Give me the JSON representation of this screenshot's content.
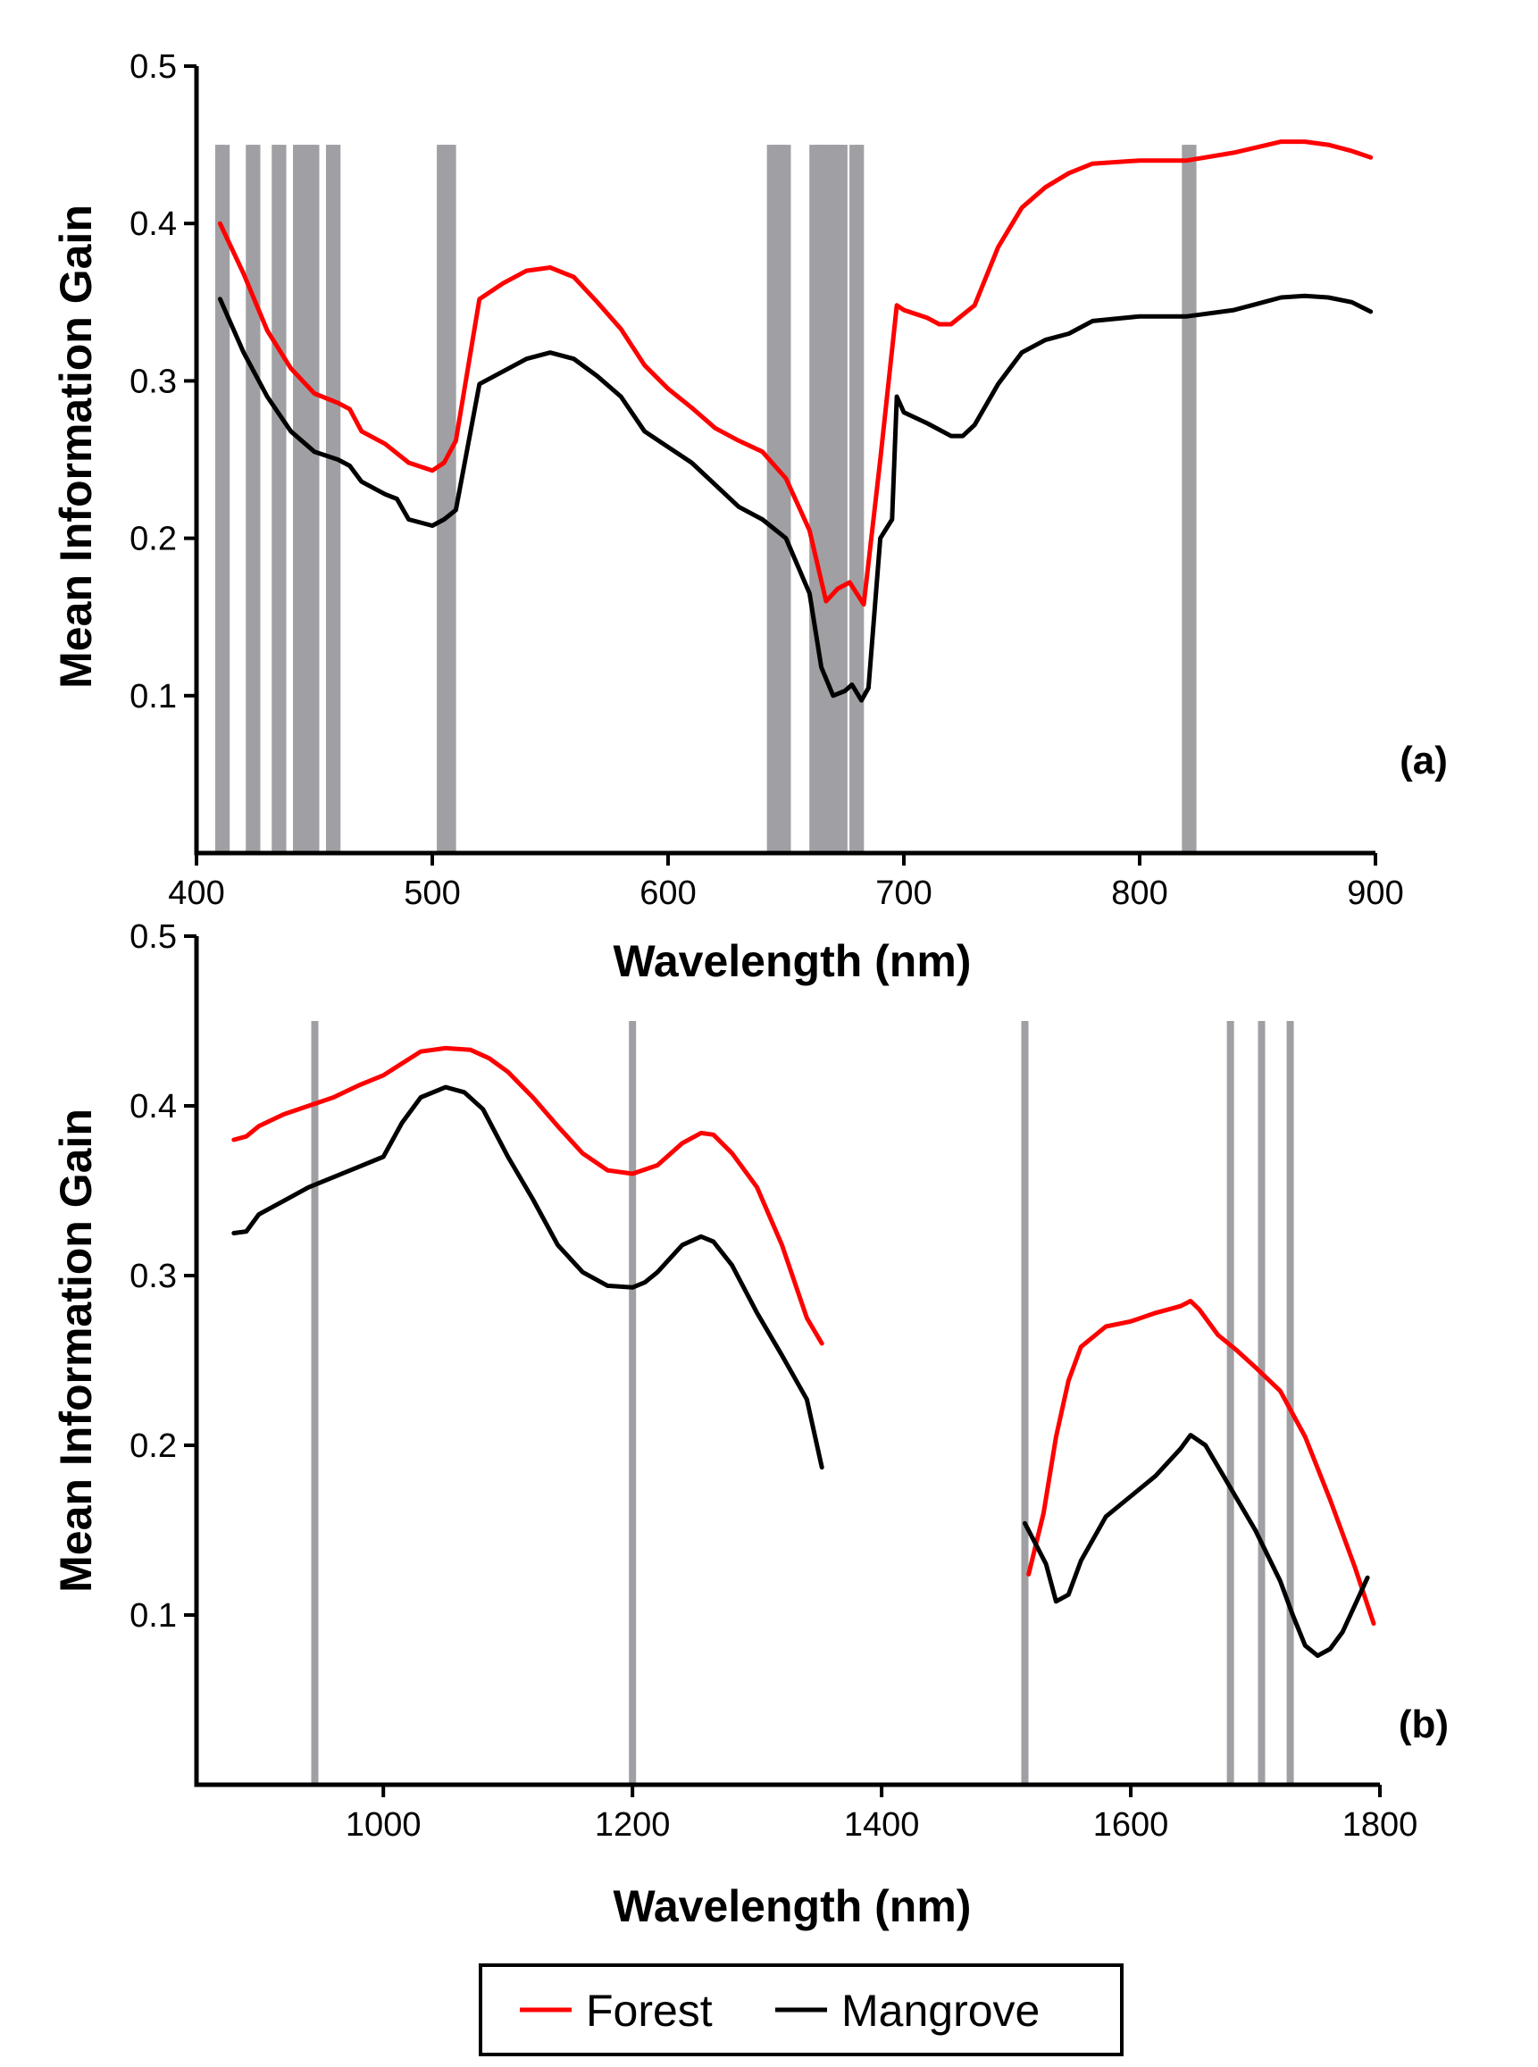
{
  "colors": {
    "forest": "#ff0000",
    "mangrove": "#000000",
    "bands": "#a0a0a4",
    "axis": "#000000"
  },
  "legend": {
    "items": [
      {
        "label": "Forest",
        "color": "#ff0000"
      },
      {
        "label": "Mangrove",
        "color": "#000000"
      }
    ],
    "placement": "bottom-center, boxed"
  },
  "chart_data": [
    {
      "type": "line",
      "panel_label": "(a)",
      "xlabel": "Wavelength (nm)",
      "ylabel": "Mean Information Gain",
      "xlim": [
        400,
        900
      ],
      "ylim": [
        0,
        0.5
      ],
      "xticks": [
        400,
        500,
        600,
        700,
        800,
        900
      ],
      "yticks": [
        0.1,
        0.2,
        0.3,
        0.4,
        0.5
      ],
      "x_tick_labels": [
        "400",
        "500",
        "600",
        "700",
        "800",
        "900"
      ],
      "y_tick_labels": [
        "0.1",
        "0.2",
        "0.3",
        "0.4",
        "0.5"
      ],
      "grid": false,
      "selected_bands": {
        "top": 0.45,
        "wavelengths": [
          410,
          412,
          423,
          425,
          434,
          436,
          443,
          445,
          448,
          450,
          457,
          459,
          504,
          506,
          508,
          644,
          646,
          648,
          650,
          662,
          664,
          666,
          668,
          670,
          672,
          674,
          679,
          681,
          820,
          822
        ]
      },
      "series": [
        {
          "name": "Forest",
          "color": "#ff0000",
          "x": [
            410,
            420,
            430,
            440,
            450,
            460,
            465,
            470,
            480,
            490,
            500,
            505,
            510,
            520,
            530,
            540,
            550,
            560,
            570,
            580,
            590,
            600,
            610,
            620,
            630,
            640,
            650,
            660,
            667,
            672,
            677,
            683,
            690,
            697,
            700,
            710,
            715,
            720,
            730,
            740,
            750,
            760,
            770,
            780,
            800,
            820,
            840,
            860,
            870,
            880,
            890,
            898
          ],
          "values": [
            0.4,
            0.368,
            0.332,
            0.308,
            0.292,
            0.286,
            0.282,
            0.268,
            0.26,
            0.248,
            0.243,
            0.248,
            0.262,
            0.352,
            0.362,
            0.37,
            0.372,
            0.366,
            0.35,
            0.333,
            0.31,
            0.295,
            0.283,
            0.27,
            0.262,
            0.255,
            0.238,
            0.205,
            0.16,
            0.168,
            0.172,
            0.158,
            0.25,
            0.348,
            0.345,
            0.34,
            0.336,
            0.336,
            0.348,
            0.385,
            0.41,
            0.423,
            0.432,
            0.438,
            0.44,
            0.44,
            0.445,
            0.452,
            0.452,
            0.45,
            0.446,
            0.442
          ]
        },
        {
          "name": "Mangrove",
          "color": "#000000",
          "x": [
            410,
            420,
            430,
            440,
            450,
            460,
            465,
            470,
            480,
            485,
            490,
            500,
            505,
            510,
            520,
            530,
            540,
            550,
            560,
            570,
            580,
            590,
            600,
            610,
            620,
            630,
            640,
            650,
            660,
            665,
            670,
            675,
            678,
            682,
            685,
            690,
            695,
            697,
            700,
            710,
            720,
            725,
            730,
            740,
            750,
            760,
            770,
            780,
            800,
            820,
            840,
            860,
            870,
            880,
            890,
            898
          ],
          "values": [
            0.352,
            0.318,
            0.29,
            0.268,
            0.255,
            0.25,
            0.246,
            0.236,
            0.228,
            0.225,
            0.212,
            0.208,
            0.212,
            0.218,
            0.298,
            0.306,
            0.314,
            0.318,
            0.314,
            0.303,
            0.29,
            0.268,
            0.258,
            0.248,
            0.234,
            0.22,
            0.212,
            0.2,
            0.165,
            0.118,
            0.1,
            0.103,
            0.107,
            0.097,
            0.105,
            0.2,
            0.212,
            0.29,
            0.28,
            0.273,
            0.265,
            0.265,
            0.272,
            0.298,
            0.318,
            0.326,
            0.33,
            0.338,
            0.341,
            0.341,
            0.345,
            0.353,
            0.354,
            0.353,
            0.35,
            0.344
          ]
        }
      ]
    },
    {
      "type": "line",
      "panel_label": "(b)",
      "xlabel": "Wavelength (nm)",
      "ylabel": "Mean Information Gain",
      "xlim": [
        850,
        1800
      ],
      "ylim": [
        0,
        0.5
      ],
      "xticks": [
        1000,
        1200,
        1400,
        1600,
        1800
      ],
      "yticks": [
        0.1,
        0.2,
        0.3,
        0.4,
        0.5
      ],
      "x_tick_labels": [
        "1000",
        "1200",
        "1400",
        "1600",
        "1800"
      ],
      "y_tick_labels": [
        "0.1",
        "0.2",
        "0.3",
        "0.4",
        "0.5"
      ],
      "grid": false,
      "selected_bands": {
        "top": 0.45,
        "wavelengths": [
          945,
          1200,
          1515,
          1680,
          1705,
          1728
        ]
      },
      "series": [
        {
          "name": "Forest",
          "color": "#ff0000",
          "segments": [
            {
              "x": [
                880,
                890,
                900,
                920,
                940,
                960,
                980,
                1000,
                1015,
                1030,
                1050,
                1070,
                1085,
                1100,
                1120,
                1140,
                1160,
                1180,
                1200,
                1220,
                1240,
                1255,
                1265,
                1280,
                1300,
                1320,
                1340,
                1352
              ],
              "values": [
                0.38,
                0.382,
                0.388,
                0.395,
                0.4,
                0.405,
                0.412,
                0.418,
                0.425,
                0.432,
                0.434,
                0.433,
                0.428,
                0.42,
                0.405,
                0.388,
                0.372,
                0.362,
                0.36,
                0.365,
                0.378,
                0.384,
                0.383,
                0.372,
                0.352,
                0.318,
                0.275,
                0.26
              ]
            },
            {
              "x": [
                1518,
                1530,
                1540,
                1550,
                1560,
                1580,
                1600,
                1620,
                1640,
                1648,
                1655,
                1670,
                1685,
                1700,
                1720,
                1740,
                1760,
                1780,
                1795
              ],
              "values": [
                0.124,
                0.16,
                0.205,
                0.238,
                0.258,
                0.27,
                0.273,
                0.278,
                0.282,
                0.285,
                0.28,
                0.265,
                0.256,
                0.246,
                0.232,
                0.205,
                0.168,
                0.128,
                0.095
              ]
            }
          ]
        },
        {
          "name": "Mangrove",
          "color": "#000000",
          "segments": [
            {
              "x": [
                880,
                890,
                900,
                920,
                940,
                960,
                980,
                1000,
                1015,
                1030,
                1050,
                1065,
                1080,
                1100,
                1120,
                1140,
                1160,
                1180,
                1200,
                1210,
                1220,
                1240,
                1255,
                1265,
                1280,
                1300,
                1320,
                1340,
                1352
              ],
              "values": [
                0.325,
                0.326,
                0.336,
                0.344,
                0.352,
                0.358,
                0.364,
                0.37,
                0.39,
                0.405,
                0.411,
                0.408,
                0.398,
                0.37,
                0.345,
                0.318,
                0.302,
                0.294,
                0.293,
                0.296,
                0.302,
                0.318,
                0.323,
                0.32,
                0.306,
                0.278,
                0.253,
                0.227,
                0.187
              ]
            },
            {
              "x": [
                1515,
                1525,
                1532,
                1540,
                1550,
                1560,
                1580,
                1600,
                1620,
                1640,
                1648,
                1660,
                1680,
                1700,
                1720,
                1730,
                1740,
                1750,
                1760,
                1770,
                1790
              ],
              "values": [
                0.154,
                0.14,
                0.13,
                0.108,
                0.112,
                0.132,
                0.158,
                0.17,
                0.182,
                0.198,
                0.206,
                0.2,
                0.175,
                0.15,
                0.12,
                0.1,
                0.082,
                0.076,
                0.08,
                0.09,
                0.122
              ]
            }
          ]
        }
      ]
    }
  ]
}
